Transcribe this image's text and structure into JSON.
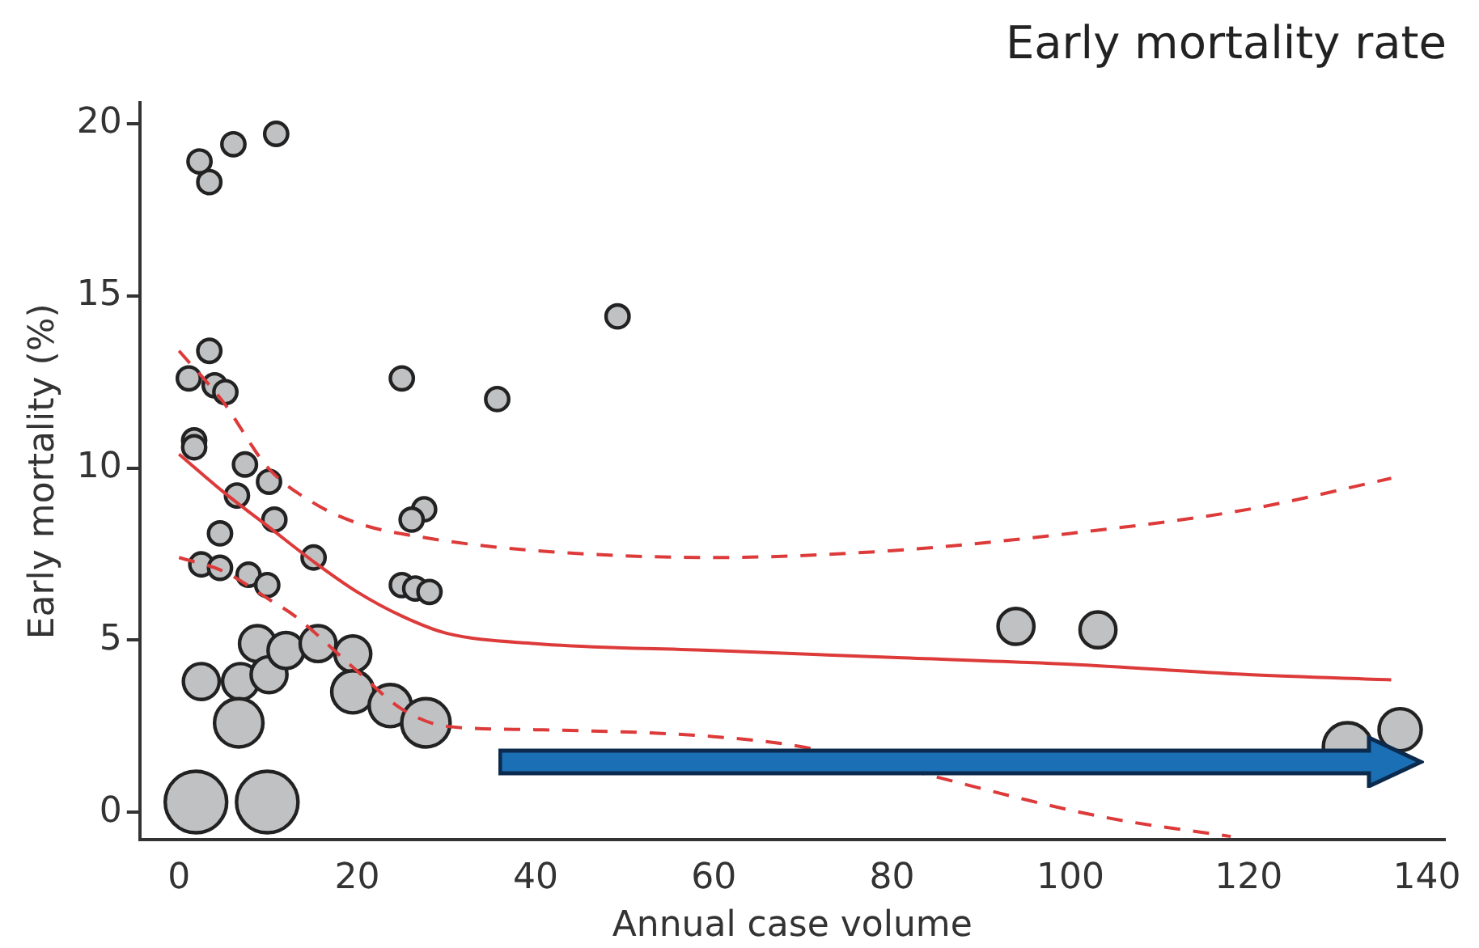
{
  "chart_data": {
    "type": "bubble",
    "title": "Early mortality rate",
    "xlabel": "Annual case volume",
    "ylabel": "Early mortality (%)",
    "xlim": [
      -4.4,
      142
    ],
    "ylim": [
      -0.8,
      20.6
    ],
    "xticks": [
      0,
      20,
      40,
      60,
      80,
      100,
      120,
      140
    ],
    "yticks": [
      0,
      5,
      10,
      15,
      20
    ],
    "series": [
      {
        "type": "bubble",
        "color": "#c0c1c3",
        "x": [
          2.3,
          3.4,
          6.1,
          10.9,
          49.2,
          35.7,
          25.0,
          3.4,
          1.1,
          4.0,
          5.2,
          1.7,
          1.7,
          7.4,
          10.1,
          6.5,
          10.7,
          4.6,
          27.5,
          26.1,
          15.1,
          2.5,
          4.6,
          7.8,
          9.9,
          25.0,
          26.5,
          28.1,
          93.9,
          103.1,
          2.5,
          6.9,
          8.8,
          10.1,
          12.0,
          15.6,
          19.5,
          19.5,
          23.7,
          6.7,
          27.7,
          131.1,
          137.0,
          1.9,
          9.9
        ],
        "values": [
          18.9,
          18.3,
          19.4,
          19.7,
          14.4,
          12.0,
          12.6,
          13.4,
          12.6,
          12.4,
          12.2,
          10.8,
          10.6,
          10.1,
          9.6,
          9.2,
          8.5,
          8.1,
          8.8,
          8.5,
          7.4,
          7.2,
          7.1,
          6.9,
          6.6,
          6.6,
          6.5,
          6.4,
          5.4,
          5.3,
          3.8,
          3.8,
          4.9,
          4.0,
          4.7,
          4.9,
          4.6,
          3.5,
          3.1,
          2.6,
          2.6,
          1.9,
          2.4,
          0.3,
          0.3
        ],
        "sizes": [
          0.14,
          0.14,
          0.14,
          0.14,
          0.14,
          0.14,
          0.14,
          0.14,
          0.14,
          0.14,
          0.14,
          0.14,
          0.14,
          0.14,
          0.14,
          0.14,
          0.14,
          0.14,
          0.14,
          0.14,
          0.14,
          0.14,
          0.14,
          0.14,
          0.14,
          0.14,
          0.14,
          0.14,
          0.34,
          0.34,
          0.34,
          0.34,
          0.34,
          0.34,
          0.34,
          0.34,
          0.34,
          0.47,
          0.47,
          0.62,
          0.62,
          0.62,
          0.47,
          1,
          1
        ]
      },
      {
        "type": "line",
        "color": "#dd3a3a",
        "x": [
          0,
          5,
          10,
          15,
          20,
          25,
          30,
          40,
          60,
          80,
          100,
          120,
          136
        ],
        "values": [
          10.4,
          9.3,
          8.3,
          7.3,
          6.4,
          5.7,
          5.2,
          4.9,
          4.7,
          4.5,
          4.3,
          4.0,
          3.85
        ]
      },
      {
        "type": "line",
        "color": "#dd3a3a",
        "line_style": "dashed",
        "x": [
          0,
          5,
          10,
          15,
          20,
          27,
          40,
          60,
          80,
          100,
          120,
          136
        ],
        "values": [
          13.4,
          11.9,
          10.0,
          9.0,
          8.4,
          8.0,
          7.6,
          7.4,
          7.6,
          8.1,
          8.8,
          9.7
        ]
      },
      {
        "type": "line",
        "color": "#dd3a3a",
        "line_style": "dashed",
        "x": [
          0,
          5,
          10,
          13,
          20,
          25,
          30,
          40,
          60,
          70,
          104,
          118
        ],
        "values": [
          7.4,
          7.0,
          6.2,
          5.7,
          4.1,
          3.0,
          2.5,
          2.4,
          2.2,
          1.9,
          -0.15,
          -0.7
        ]
      }
    ]
  }
}
